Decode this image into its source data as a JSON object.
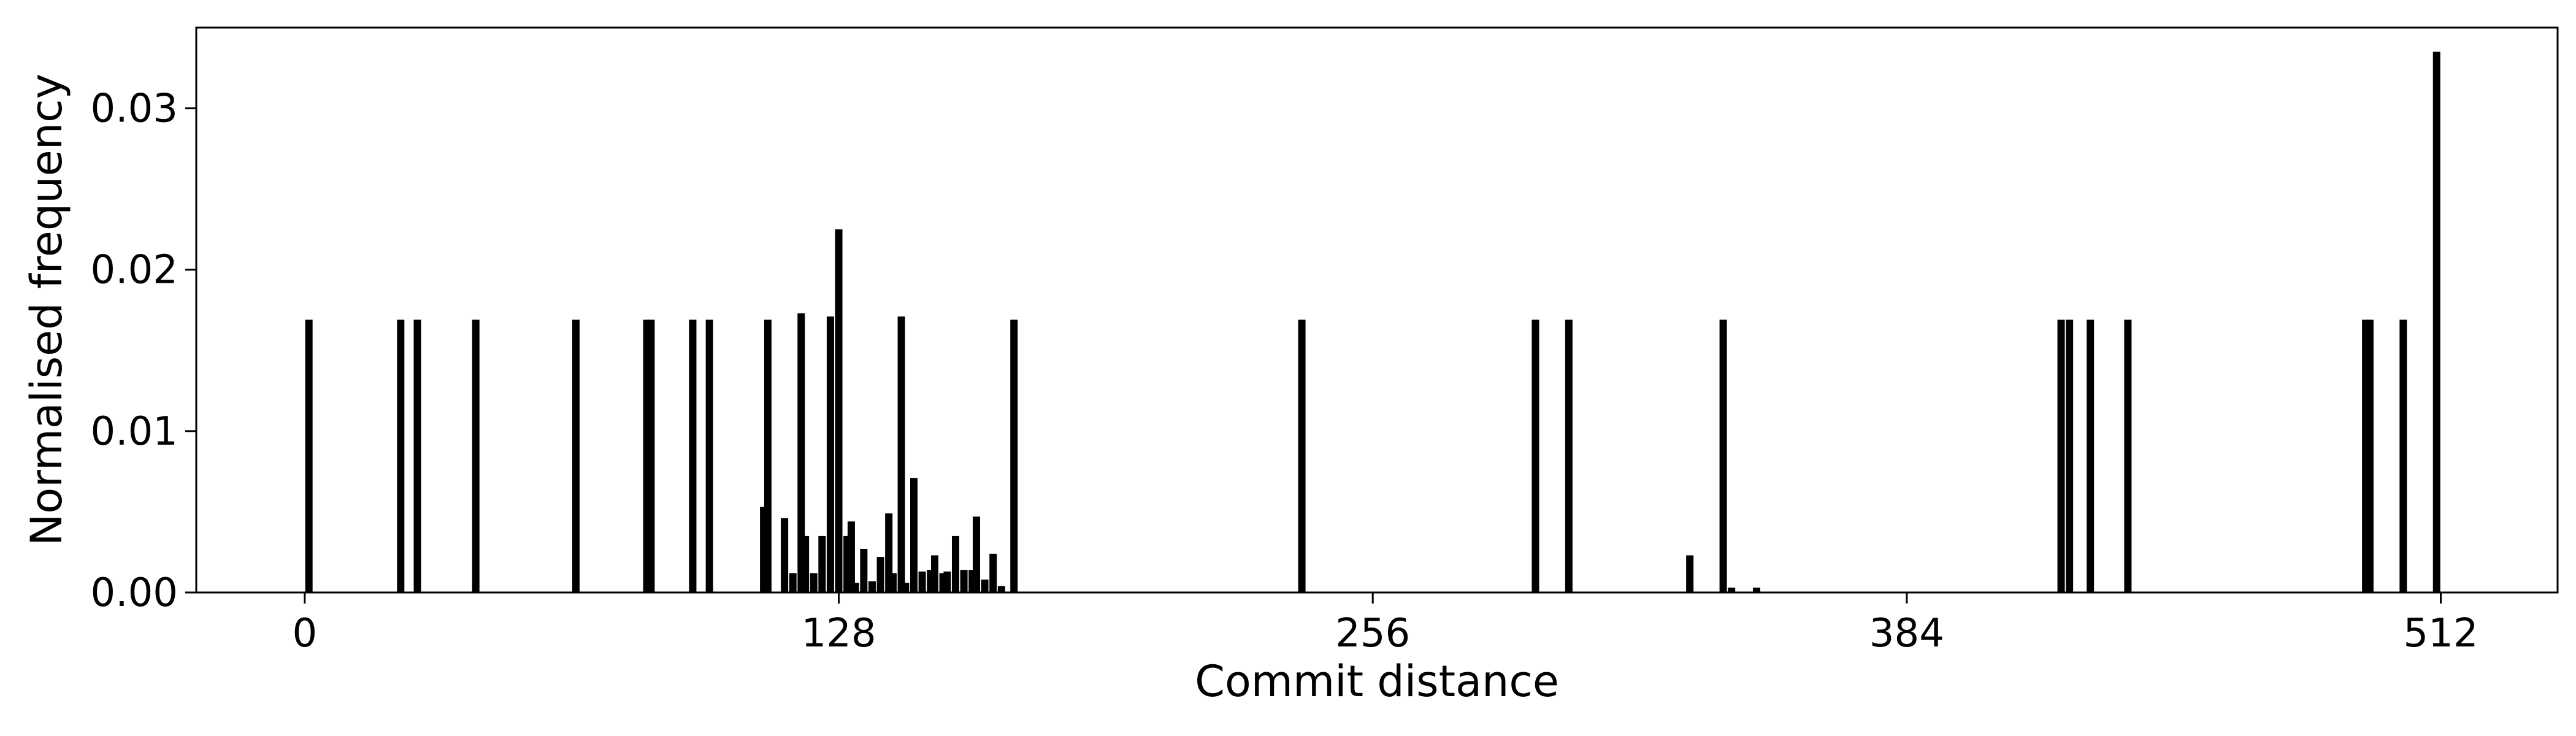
{
  "chart_data": {
    "type": "bar",
    "title": "",
    "xlabel": "Commit distance",
    "ylabel": "Normalised frequency",
    "xlim": [
      -26,
      540
    ],
    "ylim": [
      0.0,
      0.035
    ],
    "x_ticks": [
      0,
      128,
      256,
      384,
      512
    ],
    "y_ticks": [
      0.0,
      0.01,
      0.02,
      0.03
    ],
    "x_tick_labels": [
      "0",
      "128",
      "256",
      "384",
      "512"
    ],
    "y_tick_labels": [
      "0.00",
      "0.01",
      "0.02",
      "0.03"
    ],
    "grid": false,
    "bar_color": "#000000",
    "x": [
      1,
      23,
      27,
      41,
      65,
      82,
      83,
      93,
      97,
      110,
      111,
      115,
      117,
      119,
      120,
      122,
      124,
      126,
      128,
      130,
      131,
      132,
      134,
      136,
      138,
      140,
      141,
      143,
      144,
      146,
      148,
      150,
      151,
      153,
      154,
      156,
      158,
      160,
      161,
      163,
      165,
      167,
      170,
      239,
      295,
      303,
      332,
      340,
      342,
      348,
      421,
      423,
      428,
      437,
      494,
      495,
      503,
      511
    ],
    "values": [
      0.0169,
      0.0169,
      0.0169,
      0.0169,
      0.0169,
      0.0169,
      0.0169,
      0.0169,
      0.0169,
      0.0053,
      0.0169,
      0.0046,
      0.0012,
      0.0173,
      0.0035,
      0.0012,
      0.0035,
      0.0171,
      0.0225,
      0.0035,
      0.0044,
      0.0006,
      0.0027,
      0.0007,
      0.0022,
      0.0049,
      0.0012,
      0.0171,
      0.0006,
      0.0071,
      0.0013,
      0.0014,
      0.0023,
      0.0012,
      0.0013,
      0.0035,
      0.0014,
      0.0014,
      0.0047,
      0.0008,
      0.0024,
      0.0004,
      0.0169,
      0.0169,
      0.0169,
      0.0169,
      0.0023,
      0.0169,
      0.0003,
      0.0003,
      0.0169,
      0.0169,
      0.0169,
      0.0169,
      0.0169,
      0.0169,
      0.0169,
      0.0335
    ]
  }
}
